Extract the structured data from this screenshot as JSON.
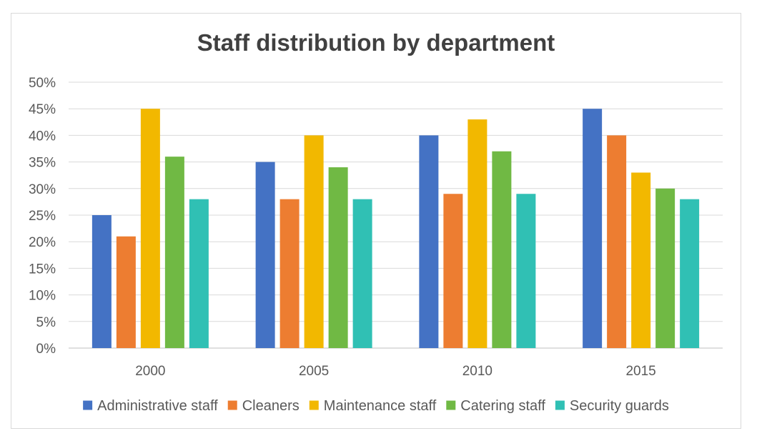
{
  "chart_data": {
    "type": "bar",
    "title": "Staff distribution by department",
    "xlabel": "",
    "ylabel": "",
    "categories": [
      "2000",
      "2005",
      "2010",
      "2015"
    ],
    "ylim": [
      0,
      50
    ],
    "yticks": [
      0,
      5,
      10,
      15,
      20,
      25,
      30,
      35,
      40,
      45,
      50
    ],
    "ytick_suffix": "%",
    "grid": true,
    "legend_position": "bottom",
    "series": [
      {
        "name": "Administrative staff",
        "color": "#4472c4",
        "values": [
          25,
          35,
          40,
          45
        ]
      },
      {
        "name": "Cleaners",
        "color": "#ed7d31",
        "values": [
          21,
          28,
          29,
          40
        ]
      },
      {
        "name": "Maintenance staff",
        "color": "#f2b800",
        "values": [
          45,
          40,
          43,
          33
        ]
      },
      {
        "name": "Catering staff",
        "color": "#70b944",
        "values": [
          36,
          34,
          37,
          30
        ]
      },
      {
        "name": "Security guards",
        "color": "#30c0b4",
        "values": [
          28,
          28,
          29,
          28
        ]
      }
    ]
  }
}
